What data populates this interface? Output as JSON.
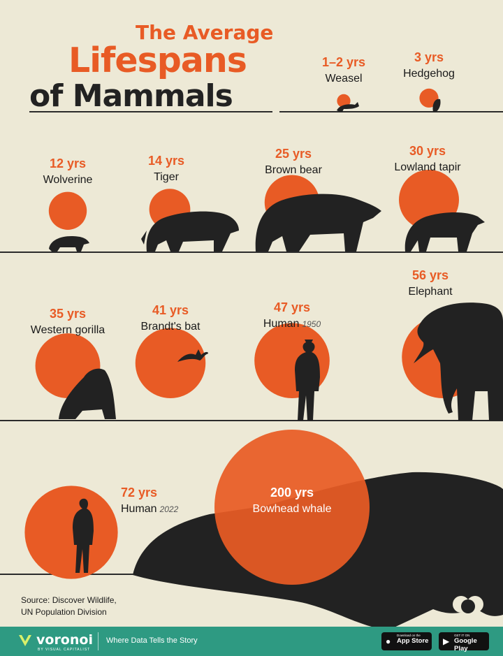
{
  "title": {
    "line1": "The Average",
    "line2": "Lifespans",
    "line3": "of Mammals"
  },
  "colors": {
    "background": "#ede9d6",
    "accent": "#e85b25",
    "dark": "#222222",
    "footer": "#2e9a82"
  },
  "chart_data": {
    "type": "bubble",
    "title": "The Average Lifespans of Mammals",
    "unit": "yrs",
    "items": [
      {
        "label": "1–2 yrs",
        "name": "Weasel",
        "value": 1.5,
        "icon": "weasel-icon"
      },
      {
        "label": "3 yrs",
        "name": "Hedgehog",
        "value": 3,
        "icon": "hedgehog-icon"
      },
      {
        "label": "12 yrs",
        "name": "Wolverine",
        "value": 12,
        "icon": "wolverine-icon"
      },
      {
        "label": "14 yrs",
        "name": "Tiger",
        "value": 14,
        "icon": "tiger-icon"
      },
      {
        "label": "25 yrs",
        "name": "Brown bear",
        "value": 25,
        "icon": "brown-bear-icon"
      },
      {
        "label": "30 yrs",
        "name": "Lowland tapir",
        "value": 30,
        "icon": "tapir-icon"
      },
      {
        "label": "35 yrs",
        "name": "Western gorilla",
        "value": 35,
        "icon": "gorilla-icon"
      },
      {
        "label": "41 yrs",
        "name": "Brandt's bat",
        "value": 41,
        "icon": "bat-icon"
      },
      {
        "label": "47 yrs",
        "name": "Human",
        "sub": "1950",
        "value": 47,
        "icon": "human-icon"
      },
      {
        "label": "56 yrs",
        "name": "Elephant",
        "value": 56,
        "icon": "elephant-icon"
      },
      {
        "label": "72 yrs",
        "name": "Human",
        "sub": "2022",
        "value": 72,
        "icon": "human-icon"
      },
      {
        "label": "200 yrs",
        "name": "Bowhead whale",
        "value": 200,
        "icon": "whale-icon"
      }
    ]
  },
  "source": {
    "line1": "Source: Discover Wildlife,",
    "line2": "UN Population Division"
  },
  "footer": {
    "brand": "voronoi",
    "brand_sub": "BY VISUAL CAPITALIST",
    "tagline": "Where Data Tells the Story",
    "app_store_small": "Download on the",
    "app_store": "App Store",
    "google_play_small": "GET IT ON",
    "google_play": "Google Play"
  }
}
